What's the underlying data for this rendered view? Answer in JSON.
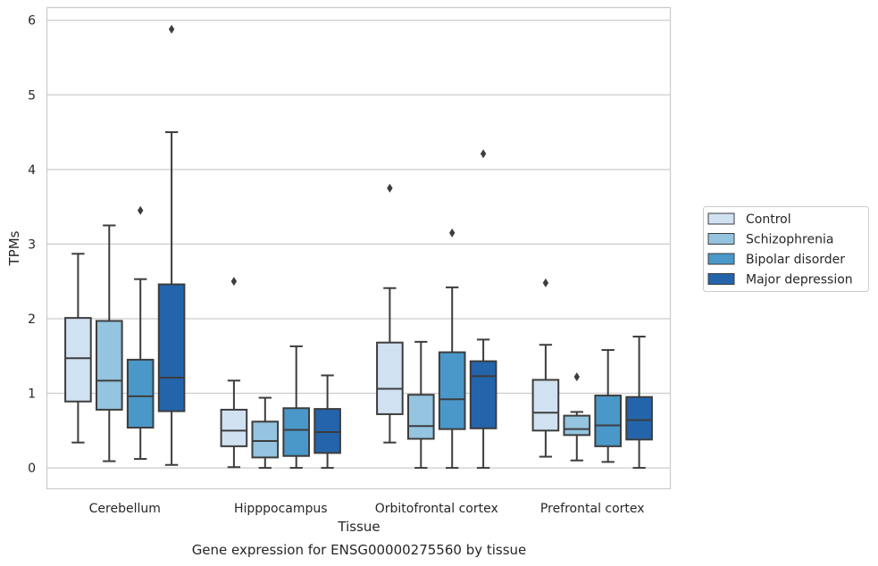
{
  "chart_data": {
    "type": "box",
    "xlabel": "Tissue",
    "ylabel": "TPMs",
    "caption": "Gene expression for ENSG00000275560 by tissue",
    "ylim": [
      -0.28,
      6.17
    ],
    "yticks": [
      0,
      1,
      2,
      3,
      4,
      5,
      6
    ],
    "grid": "horizontal",
    "legend_position": "right",
    "categories": [
      "Cerebellum",
      "Hipppocampus",
      "Orbitofrontal cortex",
      "Prefrontal cortex"
    ],
    "series": [
      {
        "name": "Control",
        "color": "#d0e1f2",
        "boxes": [
          {
            "whislo": 0.34,
            "q1": 0.89,
            "med": 1.47,
            "q3": 2.01,
            "whishi": 2.87,
            "fliers": []
          },
          {
            "whislo": 0.01,
            "q1": 0.29,
            "med": 0.5,
            "q3": 0.78,
            "whishi": 1.17,
            "fliers": [
              2.5
            ]
          },
          {
            "whislo": 0.34,
            "q1": 0.72,
            "med": 1.06,
            "q3": 1.68,
            "whishi": 2.41,
            "fliers": [
              3.75
            ]
          },
          {
            "whislo": 0.15,
            "q1": 0.5,
            "med": 0.74,
            "q3": 1.18,
            "whishi": 1.65,
            "fliers": [
              2.48
            ]
          }
        ]
      },
      {
        "name": "Schizophrenia",
        "color": "#94c4df",
        "boxes": [
          {
            "whislo": 0.09,
            "q1": 0.78,
            "med": 1.17,
            "q3": 1.97,
            "whishi": 3.25,
            "fliers": []
          },
          {
            "whislo": 0.0,
            "q1": 0.14,
            "med": 0.36,
            "q3": 0.62,
            "whishi": 0.94,
            "fliers": []
          },
          {
            "whislo": 0.0,
            "q1": 0.39,
            "med": 0.56,
            "q3": 0.98,
            "whishi": 1.69,
            "fliers": []
          },
          {
            "whislo": 0.1,
            "q1": 0.44,
            "med": 0.52,
            "q3": 0.7,
            "whishi": 0.75,
            "fliers": [
              1.22
            ]
          }
        ]
      },
      {
        "name": "Bipolar disorder",
        "color": "#4a98c9",
        "boxes": [
          {
            "whislo": 0.12,
            "q1": 0.54,
            "med": 0.96,
            "q3": 1.45,
            "whishi": 2.53,
            "fliers": [
              3.45
            ]
          },
          {
            "whislo": 0.0,
            "q1": 0.16,
            "med": 0.51,
            "q3": 0.8,
            "whishi": 1.63,
            "fliers": []
          },
          {
            "whislo": 0.0,
            "q1": 0.52,
            "med": 0.92,
            "q3": 1.55,
            "whishi": 2.42,
            "fliers": [
              3.15
            ]
          },
          {
            "whislo": 0.08,
            "q1": 0.29,
            "med": 0.57,
            "q3": 0.97,
            "whishi": 1.58,
            "fliers": []
          }
        ]
      },
      {
        "name": "Major depression",
        "color": "#2464ab",
        "boxes": [
          {
            "whislo": 0.04,
            "q1": 0.76,
            "med": 1.21,
            "q3": 2.46,
            "whishi": 4.5,
            "fliers": [
              5.88
            ]
          },
          {
            "whislo": 0.0,
            "q1": 0.2,
            "med": 0.48,
            "q3": 0.79,
            "whishi": 1.24,
            "fliers": []
          },
          {
            "whislo": 0.0,
            "q1": 0.53,
            "med": 1.23,
            "q3": 1.43,
            "whishi": 1.72,
            "fliers": [
              4.21
            ]
          },
          {
            "whislo": 0.0,
            "q1": 0.38,
            "med": 0.64,
            "q3": 0.95,
            "whishi": 1.76,
            "fliers": []
          }
        ]
      }
    ]
  }
}
